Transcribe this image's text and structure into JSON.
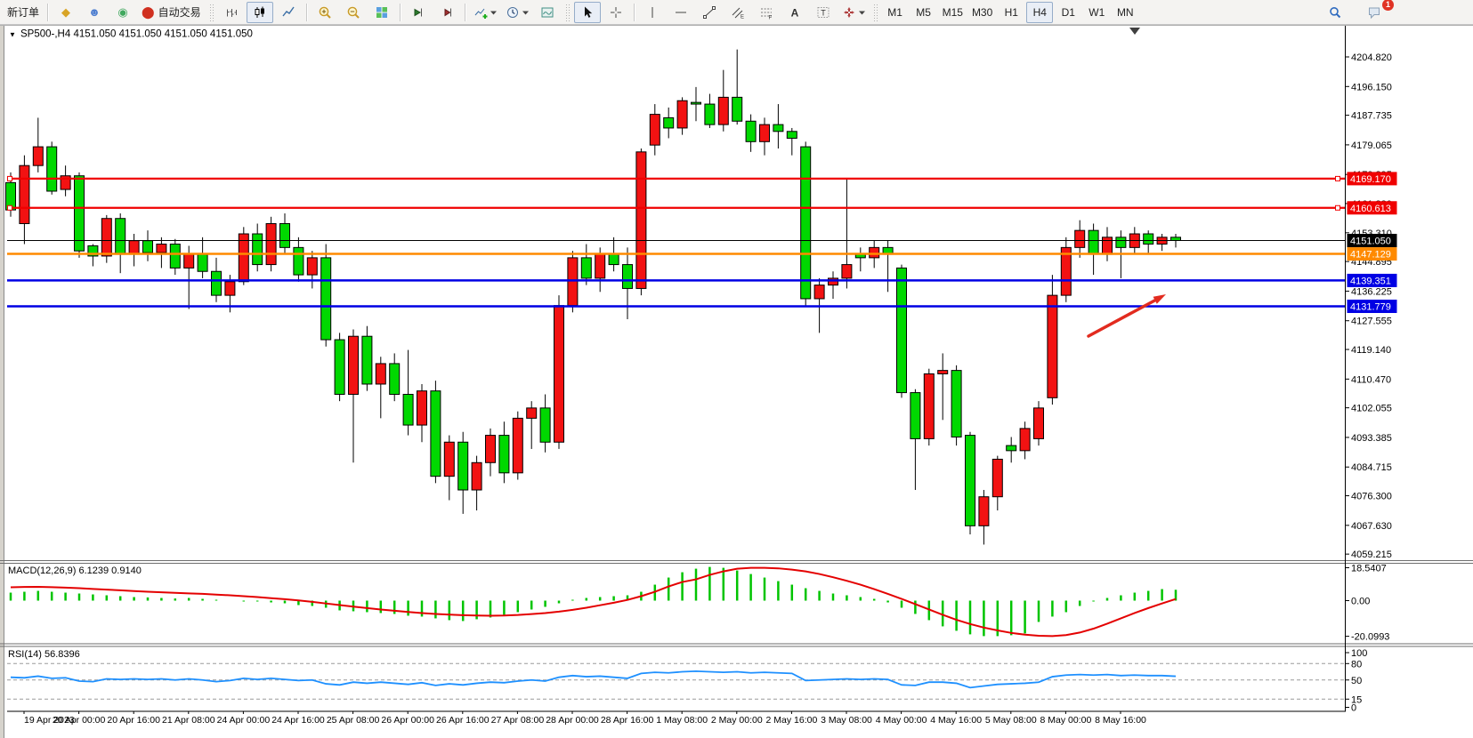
{
  "toolbar": {
    "buttons": [
      {
        "kind": "text",
        "name": "new-order-button",
        "label": "新订单"
      },
      {
        "kind": "sep"
      },
      {
        "kind": "glyph",
        "name": "market-watch-button",
        "icon_name": "gold-icon",
        "glyph": "◆",
        "color": "#d8a426"
      },
      {
        "kind": "glyph",
        "name": "profile-button",
        "icon_name": "profile-icon",
        "glyph": "☻",
        "color": "#4f7fd0"
      },
      {
        "kind": "glyph",
        "name": "signals-button",
        "icon_name": "signal-icon",
        "glyph": "◉",
        "color": "#41a85f"
      },
      {
        "kind": "glyph",
        "name": "autotrade-button",
        "icon_name": "autotrade-icon",
        "glyph": "⬤",
        "color": "#d03020",
        "label": "自动交易"
      },
      {
        "kind": "grip"
      },
      {
        "kind": "svg",
        "name": "bar-chart-button",
        "icon": "bars"
      },
      {
        "kind": "svg",
        "name": "candlestick-chart-button",
        "icon": "candles",
        "active": true
      },
      {
        "kind": "svg",
        "name": "line-chart-button",
        "icon": "linechart"
      },
      {
        "kind": "sep"
      },
      {
        "kind": "svg",
        "name": "zoom-in-button",
        "icon": "zoomin"
      },
      {
        "kind": "svg",
        "name": "zoom-out-button",
        "icon": "zoomout"
      },
      {
        "kind": "svg",
        "name": "tile-windows-button",
        "icon": "tile"
      },
      {
        "kind": "sep"
      },
      {
        "kind": "svg",
        "name": "auto-scroll-button",
        "icon": "autoscroll"
      },
      {
        "kind": "svg",
        "name": "chart-shift-button",
        "icon": "shift"
      },
      {
        "kind": "sep"
      },
      {
        "kind": "svg",
        "name": "indicators-button",
        "icon": "indicator",
        "caret": true
      },
      {
        "kind": "svg",
        "name": "periods-button",
        "icon": "clock",
        "caret": true
      },
      {
        "kind": "svg",
        "name": "templates-button",
        "icon": "template"
      },
      {
        "kind": "grip"
      },
      {
        "kind": "svg",
        "name": "cursor-button",
        "icon": "cursor",
        "active": true
      },
      {
        "kind": "svg",
        "name": "crosshair-button",
        "icon": "crosshair"
      },
      {
        "kind": "sep"
      },
      {
        "kind": "svg",
        "name": "vertical-line-button",
        "icon": "vline"
      },
      {
        "kind": "svg",
        "name": "horizontal-line-button",
        "icon": "hline"
      },
      {
        "kind": "svg",
        "name": "trendline-button",
        "icon": "trendline"
      },
      {
        "kind": "svg",
        "name": "equidistant-channel-button",
        "icon": "channel"
      },
      {
        "kind": "svg",
        "name": "fibonacci-button",
        "icon": "fibo"
      },
      {
        "kind": "svg",
        "name": "text-button",
        "icon": "textA"
      },
      {
        "kind": "svg",
        "name": "text-label-button",
        "icon": "textT"
      },
      {
        "kind": "svg",
        "name": "arrows-button",
        "icon": "arrows",
        "caret": true
      },
      {
        "kind": "grip"
      },
      {
        "kind": "tf",
        "name": "timeframe-m1-button",
        "label": "M1"
      },
      {
        "kind": "tf",
        "name": "timeframe-m5-button",
        "label": "M5"
      },
      {
        "kind": "tf",
        "name": "timeframe-m15-button",
        "label": "M15"
      },
      {
        "kind": "tf",
        "name": "timeframe-m30-button",
        "label": "M30"
      },
      {
        "kind": "tf",
        "name": "timeframe-h1-button",
        "label": "H1"
      },
      {
        "kind": "tf",
        "name": "timeframe-h4-button",
        "label": "H4",
        "active": true
      },
      {
        "kind": "tf",
        "name": "timeframe-d1-button",
        "label": "D1"
      },
      {
        "kind": "tf",
        "name": "timeframe-w1-button",
        "label": "W1"
      },
      {
        "kind": "tf",
        "name": "timeframe-mn-button",
        "label": "MN"
      }
    ],
    "right": [
      {
        "name": "search-button",
        "icon": "search"
      },
      {
        "name": "notifications-button",
        "icon": "chat",
        "badge": "1"
      }
    ]
  },
  "chart_data": {
    "type": "candlestick",
    "symbol": "SP500-",
    "period": "H4",
    "collapse_icon": "▼",
    "title": "SP500-,H4  4151.050 4151.050 4151.050 4151.050",
    "quotes": [
      "4151.050",
      "4151.050",
      "4151.050",
      "4151.050"
    ],
    "up_color": "#f21212",
    "down_color": "#00d800",
    "price_axis": {
      "grid": [
        4204.82,
        4196.15,
        4187.735,
        4179.065,
        4170.395,
        4161.88,
        4153.31,
        4144.895,
        4136.225,
        4127.555,
        4119.14,
        4110.47,
        4102.055,
        4093.385,
        4084.715,
        4076.3,
        4067.63,
        4059.215
      ],
      "visible_range": [
        4057.5,
        4213.5
      ]
    },
    "time_axis": [
      "19 Apr 2023",
      "20 Apr 00:00",
      "20 Apr 16:00",
      "21 Apr 08:00",
      "24 Apr 00:00",
      "24 Apr 16:00",
      "25 Apr 08:00",
      "26 Apr 00:00",
      "26 Apr 16:00",
      "27 Apr 08:00",
      "28 Apr 00:00",
      "28 Apr 16:00",
      "1 May 08:00",
      "2 May 00:00",
      "2 May 16:00",
      "3 May 08:00",
      "4 May 00:00",
      "4 May 16:00",
      "5 May 08:00",
      "8 May 00:00",
      "8 May 16:00"
    ],
    "candles": [
      [
        4168,
        4171,
        4158,
        4160
      ],
      [
        4156,
        4176,
        4150,
        4173
      ],
      [
        4173,
        4187,
        4171,
        4178.5
      ],
      [
        4178.5,
        4180,
        4164.5,
        4165.5
      ],
      [
        4166,
        4173,
        4164,
        4170
      ],
      [
        4170,
        4171,
        4146,
        4148
      ],
      [
        4149.5,
        4150,
        4143.5,
        4146.5
      ],
      [
        4146.5,
        4158.5,
        4144.5,
        4157.5
      ],
      [
        4157.5,
        4159,
        4141.5,
        4147
      ],
      [
        4147,
        4153,
        4143.5,
        4151
      ],
      [
        4151,
        4154,
        4145,
        4147.5
      ],
      [
        4147.5,
        4152,
        4143,
        4150
      ],
      [
        4150,
        4151.5,
        4141,
        4143
      ],
      [
        4143,
        4149.5,
        4131,
        4147
      ],
      [
        4147,
        4152,
        4140,
        4142
      ],
      [
        4142,
        4146,
        4133,
        4135
      ],
      [
        4135,
        4141,
        4130,
        4139
      ],
      [
        4139,
        4155,
        4138,
        4153
      ],
      [
        4153,
        4156,
        4142,
        4144
      ],
      [
        4144,
        4158,
        4142,
        4156
      ],
      [
        4156,
        4159,
        4147,
        4149
      ],
      [
        4149,
        4152,
        4139,
        4141
      ],
      [
        4141,
        4148,
        4137,
        4146
      ],
      [
        4146,
        4150,
        4120,
        4122
      ],
      [
        4122,
        4124,
        4104,
        4106
      ],
      [
        4106,
        4125,
        4086,
        4123
      ],
      [
        4123,
        4126,
        4107,
        4109
      ],
      [
        4109,
        4117,
        4099,
        4115
      ],
      [
        4115,
        4118,
        4104,
        4106
      ],
      [
        4106,
        4119,
        4094,
        4097
      ],
      [
        4097,
        4109,
        4092,
        4107
      ],
      [
        4107,
        4110,
        4080,
        4082
      ],
      [
        4082,
        4094,
        4075,
        4092
      ],
      [
        4092,
        4095,
        4071,
        4078
      ],
      [
        4078,
        4088,
        4072,
        4086
      ],
      [
        4086,
        4096,
        4082,
        4094
      ],
      [
        4094,
        4098,
        4080,
        4083
      ],
      [
        4083,
        4101,
        4081,
        4099
      ],
      [
        4099,
        4104,
        4090,
        4102
      ],
      [
        4102,
        4106,
        4089,
        4092
      ],
      [
        4092,
        4135,
        4090,
        4132
      ],
      [
        4132,
        4148,
        4130,
        4146
      ],
      [
        4146,
        4150,
        4138,
        4140
      ],
      [
        4140,
        4149,
        4136,
        4147
      ],
      [
        4147,
        4152,
        4142,
        4144
      ],
      [
        4144,
        4149,
        4128,
        4137
      ],
      [
        4137,
        4178,
        4135,
        4177
      ],
      [
        4179,
        4191,
        4176,
        4188
      ],
      [
        4187,
        4190,
        4181,
        4184
      ],
      [
        4184,
        4193,
        4182,
        4192
      ],
      [
        4191.5,
        4196,
        4186,
        4191
      ],
      [
        4191,
        4194,
        4184,
        4185
      ],
      [
        4185,
        4201,
        4183,
        4193
      ],
      [
        4193,
        4207,
        4185,
        4186
      ],
      [
        4186,
        4188,
        4177,
        4180
      ],
      [
        4180,
        4187,
        4176,
        4185
      ],
      [
        4185,
        4191,
        4178,
        4183
      ],
      [
        4183,
        4184,
        4176,
        4181
      ],
      [
        4178.5,
        4180,
        4132,
        4134
      ],
      [
        4134,
        4140,
        4124,
        4138
      ],
      [
        4138,
        4142,
        4134,
        4140
      ],
      [
        4140,
        4169,
        4137,
        4144
      ],
      [
        4147,
        4149,
        4142,
        4146
      ],
      [
        4146,
        4151,
        4143,
        4149
      ],
      [
        4149,
        4151,
        4136,
        4147
      ],
      [
        4143,
        4144,
        4105,
        4106.5
      ],
      [
        4106.5,
        4107.5,
        4078,
        4093
      ],
      [
        4093,
        4113.5,
        4091,
        4112
      ],
      [
        4112,
        4118,
        4098.5,
        4113
      ],
      [
        4113,
        4114.5,
        4091,
        4093.5
      ],
      [
        4094,
        4095,
        4065,
        4067.5
      ],
      [
        4067.5,
        4078,
        4062,
        4076
      ],
      [
        4076,
        4088,
        4072,
        4087
      ],
      [
        4091,
        4093.5,
        4086,
        4089.5
      ],
      [
        4089.5,
        4098,
        4087,
        4096
      ],
      [
        4093,
        4104,
        4091,
        4102
      ],
      [
        4105,
        4141,
        4103,
        4135
      ],
      [
        4135,
        4152,
        4133,
        4149
      ],
      [
        4149,
        4157,
        4146,
        4154
      ],
      [
        4154,
        4156,
        4141,
        4147
      ],
      [
        4147,
        4155,
        4145,
        4152
      ],
      [
        4152,
        4154,
        4140,
        4149
      ],
      [
        4149,
        4155,
        4147,
        4153
      ],
      [
        4153,
        4154,
        4147,
        4150
      ],
      [
        4150,
        4153,
        4148,
        4152
      ],
      [
        4152,
        4153,
        4149,
        4151.05
      ]
    ],
    "levels": [
      {
        "value": 4169.17,
        "label": "4169.170",
        "color": "#f00000",
        "type": "resistance-line",
        "width": 2.2,
        "handles": true
      },
      {
        "value": 4160.613,
        "label": "4160.613",
        "color": "#f00000",
        "type": "resistance-line",
        "width": 2.2,
        "handles": true
      },
      {
        "value": 4151.05,
        "label": "4151.050",
        "color": "#000000",
        "type": "current-price-line",
        "width": 1,
        "handles": false
      },
      {
        "value": 4147.129,
        "label": "4147.129",
        "color": "#ff8a00",
        "type": "level-line",
        "width": 2.5,
        "handles": false
      },
      {
        "value": 4139.351,
        "label": "4139.351",
        "color": "#0000e4",
        "type": "support-line",
        "width": 2.5,
        "handles": false
      },
      {
        "value": 4131.779,
        "label": "4131.779",
        "color": "#0000e4",
        "type": "support-line",
        "width": 2.5,
        "handles": false
      }
    ],
    "arrow_annotation": {
      "from": [
        1223,
        378
      ],
      "to": [
        1310,
        331
      ],
      "color": "#e22b1f"
    },
    "macd": {
      "label": "MACD(12,26,9) 6.1239 0.9140",
      "params": "12,26,9",
      "main_value": "6.1239",
      "signal_value": "0.9140",
      "axis_labels": [
        "18.5407",
        "0.00",
        "-20.0993"
      ],
      "axis_values": [
        18.5407,
        0,
        -20.0993
      ],
      "hist_color": "#00c400",
      "signal_color": "#e40000",
      "histogram": [
        4.5,
        5,
        5.5,
        5,
        4.5,
        4,
        3.5,
        3,
        2.5,
        2,
        1.8,
        1.5,
        1.2,
        1.5,
        1,
        0.5,
        0,
        -0.5,
        -0.5,
        -1,
        -1.5,
        -2.5,
        -3,
        -4,
        -5.5,
        -6,
        -6.5,
        -7,
        -7.5,
        -8.5,
        -9,
        -10,
        -11,
        -11.5,
        -10.5,
        -9.5,
        -8,
        -6.5,
        -5,
        -3.5,
        -1.5,
        0.5,
        1.5,
        2,
        2.5,
        3,
        5,
        9,
        13,
        16,
        18,
        19,
        18.5,
        17,
        15,
        13,
        11,
        9,
        7,
        5.5,
        4,
        3,
        2,
        1,
        -1,
        -4,
        -7.5,
        -11,
        -14.5,
        -17,
        -19,
        -20,
        -20,
        -19.5,
        -18.5,
        -12,
        -9,
        -6.5,
        -3,
        -0.5,
        1.5,
        3,
        4.5,
        5.5,
        6.5,
        6.12
      ],
      "signal": [
        7.5,
        7.7,
        7.8,
        7.6,
        7.3,
        7,
        6.6,
        6.2,
        5.8,
        5.4,
        5,
        4.7,
        4.4,
        4.1,
        3.8,
        3.4,
        3,
        2.5,
        2,
        1.4,
        0.8,
        0.1,
        -0.7,
        -1.6,
        -2.5,
        -3.4,
        -4.2,
        -5,
        -5.7,
        -6.4,
        -7,
        -7.5,
        -7.9,
        -8.2,
        -8.4,
        -8.5,
        -8.4,
        -8.1,
        -7.6,
        -7,
        -6.2,
        -5.2,
        -4,
        -2.6,
        -1.2,
        0.4,
        2.5,
        5,
        8,
        10.5,
        12,
        14.5,
        16.5,
        18,
        18.5,
        18.5,
        18.2,
        17.5,
        16.5,
        15,
        13.2,
        11.2,
        9,
        6.5,
        3.8,
        1,
        -2,
        -5,
        -8,
        -10.8,
        -13.2,
        -15.2,
        -16.8,
        -18.2,
        -19.2,
        -19.8,
        -20,
        -19.4,
        -18,
        -15.8,
        -13,
        -10,
        -7,
        -4.2,
        -1.6,
        0.91
      ]
    },
    "rsi": {
      "label": "RSI(14) 56.8396",
      "period": "14",
      "value": "56.8396",
      "axis_labels": [
        "100",
        "80",
        "50",
        "15",
        "0"
      ],
      "axis_values": [
        100,
        80,
        50,
        15,
        0
      ],
      "level_lines": [
        80,
        50,
        15
      ],
      "color": "#1e90ff",
      "values": [
        55,
        54,
        57,
        53,
        54,
        48,
        47,
        52,
        51,
        52,
        51,
        52,
        50,
        52,
        50,
        47,
        49,
        53,
        51,
        53,
        51,
        49,
        50,
        43,
        41,
        46,
        44,
        46,
        44,
        42,
        45,
        40,
        43,
        41,
        44,
        46,
        45,
        48,
        50,
        48,
        55,
        58,
        56,
        57,
        55,
        53,
        62,
        64,
        63,
        65,
        66,
        65,
        64,
        65,
        63,
        64,
        63,
        62,
        49,
        50,
        51,
        52,
        51,
        52,
        51,
        41,
        40,
        46,
        46,
        44,
        36,
        39,
        42,
        43,
        44,
        46,
        56,
        59,
        60,
        59,
        60,
        58,
        59,
        58,
        58,
        56.84
      ]
    }
  }
}
